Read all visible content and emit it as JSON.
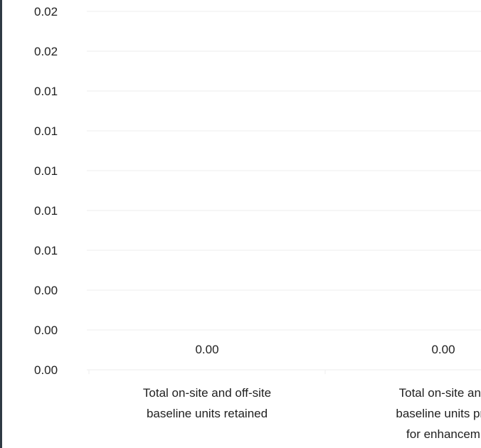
{
  "chart_data": {
    "type": "bar",
    "title": "",
    "xlabel": "",
    "ylabel": "",
    "y_tick_labels": [
      "0.02",
      "0.02",
      "0.01",
      "0.01",
      "0.01",
      "0.01",
      "0.01",
      "0.00",
      "0.00",
      "0.00"
    ],
    "categories": [
      [
        "Total on-site and off-site",
        "baseline units retained"
      ],
      [
        "Total on-site and",
        "baseline units pro",
        "for enhancem"
      ]
    ],
    "values": [
      0.0,
      0.0
    ],
    "data_labels": [
      "0.00",
      "0.00"
    ],
    "grid": true,
    "legend": "none"
  },
  "colors": {
    "gridline": "#eeeeee",
    "text": "#1f1f1f",
    "left_border": "#2f3a44"
  }
}
